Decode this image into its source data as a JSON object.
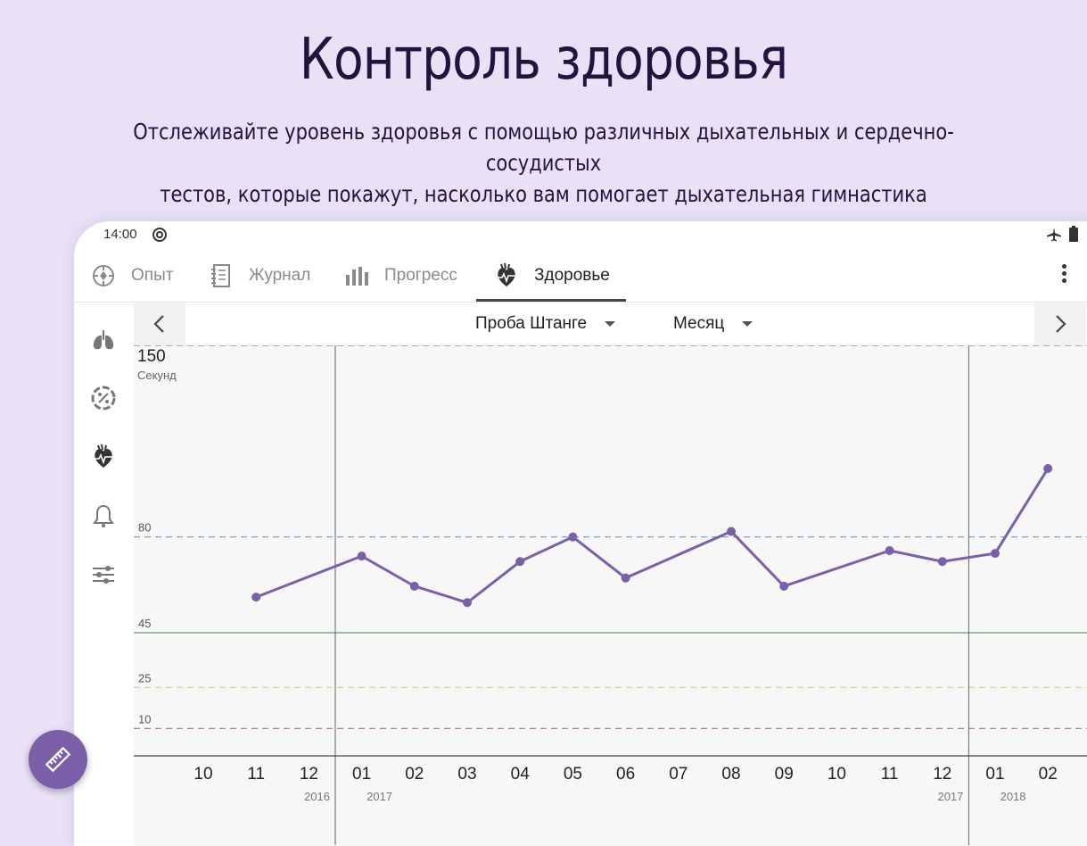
{
  "hero": {
    "title": "Контроль здоровья",
    "subtitle_line1": "Отслеживайте уровень здоровья с помощью различных дыхательных и сердечно-сосудистых",
    "subtitle_line2": "тестов, которые покажут, насколько вам помогает дыхательная гимнастика"
  },
  "status": {
    "time": "14:00",
    "icons": [
      "sync-icon",
      "airplane-icon",
      "battery-icon"
    ]
  },
  "tabs": [
    {
      "label": "Опыт",
      "icon": "target-icon",
      "active": false
    },
    {
      "label": "Журнал",
      "icon": "journal-icon",
      "active": false
    },
    {
      "label": "Прогресс",
      "icon": "bar-chart-icon",
      "active": false
    },
    {
      "label": "Здоровье",
      "icon": "heart-icon",
      "active": true
    }
  ],
  "sidebar": {
    "icons": [
      "lungs-icon",
      "percent-icon",
      "heart-icon",
      "bell-icon",
      "sliders-icon"
    ]
  },
  "chart_header": {
    "test": "Проба Штанге",
    "period": "Месяц"
  },
  "colors": {
    "line": "#7b5fa8",
    "accent": "#7b5fa8",
    "background": "#e9e1f6"
  },
  "chart_data": {
    "type": "line",
    "ylabel": "Секунд",
    "ylim": [
      0,
      150
    ],
    "y_max_label": "150",
    "x_tick_labels": [
      "10",
      "11",
      "12",
      "01",
      "02",
      "03",
      "04",
      "05",
      "06",
      "07",
      "08",
      "09",
      "10",
      "11",
      "12",
      "01",
      "02"
    ],
    "year_labels": [
      {
        "label": "2016",
        "after_tick": 2
      },
      {
        "label": "2017",
        "after_tick": 3
      },
      {
        "label": "2017",
        "after_tick": 14
      },
      {
        "label": "2018",
        "after_tick": 15
      }
    ],
    "year_dividers_after_tick": [
      2,
      14
    ],
    "reference_lines": [
      {
        "value": 150,
        "label": "",
        "color": "#7a7aa6",
        "style": "dashed"
      },
      {
        "value": 80,
        "label": "80",
        "color": "#6a9ec8",
        "style": "dashed"
      },
      {
        "value": 45,
        "label": "45",
        "color": "#5aa06a",
        "style": "solid"
      },
      {
        "value": 25,
        "label": "25",
        "color": "#cfd08a",
        "style": "dashed"
      },
      {
        "value": 10,
        "label": "10",
        "color": "#b06a8a",
        "style": "dashed"
      }
    ],
    "series": [
      {
        "points": [
          {
            "tick": 1,
            "y": 58
          },
          {
            "tick": 3,
            "y": 73
          },
          {
            "tick": 4,
            "y": 62
          },
          {
            "tick": 5,
            "y": 56
          },
          {
            "tick": 6,
            "y": 71
          },
          {
            "tick": 7,
            "y": 80
          },
          {
            "tick": 8,
            "y": 65
          },
          {
            "tick": 10,
            "y": 82
          },
          {
            "tick": 11,
            "y": 62
          },
          {
            "tick": 13,
            "y": 75
          },
          {
            "tick": 14,
            "y": 71
          },
          {
            "tick": 15,
            "y": 74
          },
          {
            "tick": 16,
            "y": 105
          }
        ]
      }
    ]
  }
}
